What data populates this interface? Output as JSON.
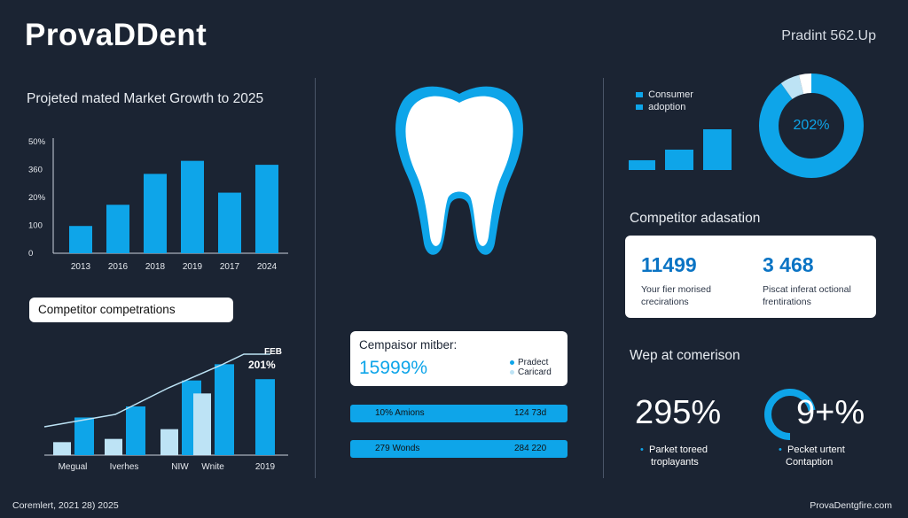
{
  "header": {
    "brand": "ProvaDDent",
    "tagline": "Pradint 562.Up"
  },
  "colors": {
    "background": "#1b2433",
    "accent": "#0ea5e9",
    "accent_light": "#bde3f5",
    "card": "#ffffff"
  },
  "chart_data": [
    {
      "type": "bar",
      "title": "Projeted mated Market Growth to 2025",
      "categories": [
        "2013",
        "2016",
        "2018",
        "2019",
        "2017",
        "2024"
      ],
      "values": [
        90,
        160,
        262,
        305,
        200,
        292
      ],
      "yticks": [
        "50%",
        "360",
        "20%",
        "100",
        "0"
      ],
      "ylim": [
        0,
        380
      ]
    },
    {
      "type": "bar",
      "categories": [
        "Megual",
        "Iverhes",
        "NIW",
        "Wnite",
        "2019"
      ],
      "series": [
        {
          "values": [
            20,
            25,
            40,
            95,
            0
          ]
        },
        {
          "values": [
            58,
            75,
            115,
            140,
            117
          ]
        }
      ],
      "annotation": {
        "line1": "FEB",
        "line2": "201%"
      }
    },
    {
      "type": "bar",
      "legend": [
        "Consumer",
        "adoption"
      ],
      "values": [
        12,
        25,
        50
      ]
    },
    {
      "type": "pie",
      "label": "202%",
      "values": [
        90,
        6,
        4
      ]
    }
  ],
  "left": {
    "comp_pill": "Competitor competrations"
  },
  "center": {
    "card_title": "Cempaisor mitber:",
    "card_value": "15999%",
    "legend": [
      "Pradect",
      "Caricard"
    ],
    "bar1": {
      "left": "10% Amions",
      "right": "124 73d"
    },
    "bar2": {
      "left": "279 Wonds",
      "right": "284 220"
    }
  },
  "right": {
    "comp_heading": "Competitor adasation",
    "stat1": {
      "value": "11499",
      "line1": "Your fier morised",
      "line2": "crecirations"
    },
    "stat2": {
      "value": "3 468",
      "line1": "Piscat inferat octional",
      "line2": "frentirations"
    },
    "wep_heading": "Wep at comerison",
    "big1": {
      "value": "295%",
      "line1": "Parket toreed",
      "line2": "troplayants"
    },
    "big2": {
      "value": "9+%",
      "line1": "Pecket urtent",
      "line2": "Contaption",
      "percent": 72
    }
  },
  "footer": {
    "left": "Coremlert, 2021 28) 2025",
    "right": "ProvaDentgfire.com"
  }
}
